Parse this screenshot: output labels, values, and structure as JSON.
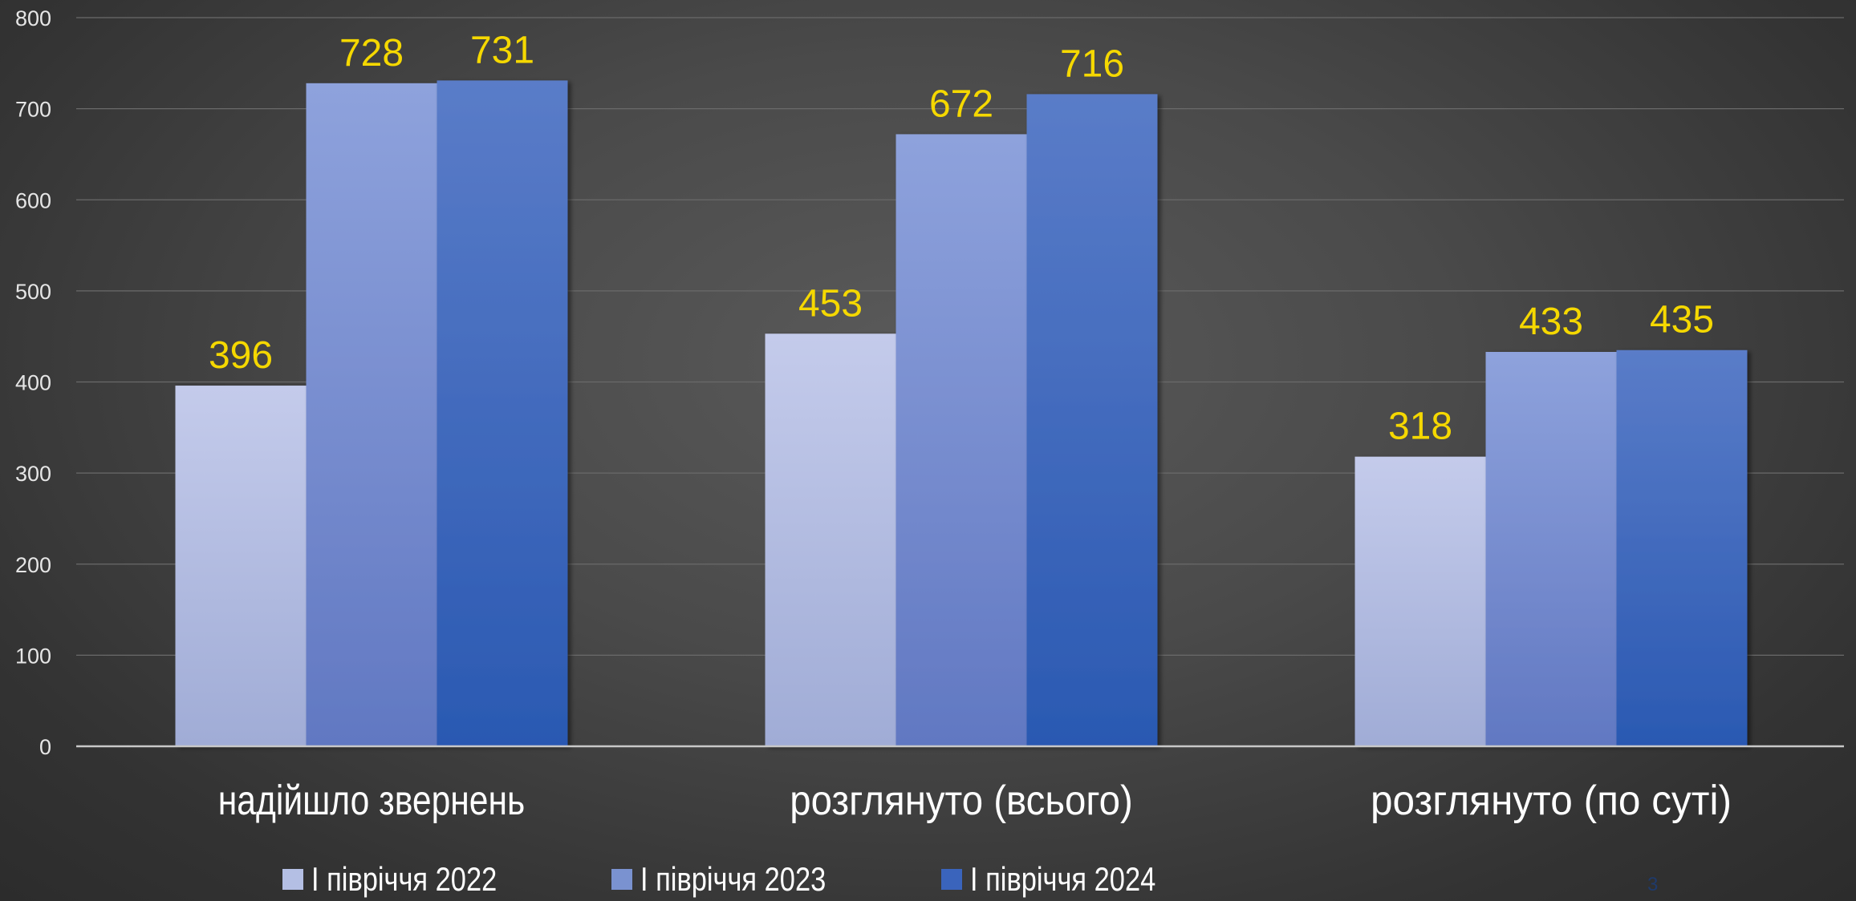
{
  "chart_data": {
    "type": "bar",
    "title": "",
    "xlabel": "",
    "ylabel": "",
    "ylim": [
      0,
      800
    ],
    "yticks": [
      "0",
      "100",
      "200",
      "300",
      "400",
      "500",
      "600",
      "700",
      "800"
    ],
    "grid": true,
    "legend_position": "bottom",
    "categories": [
      "надійшло звернень",
      "розглянуто (всього)",
      "розглянуто (по суті)"
    ],
    "series": [
      {
        "name": "І півріччя 2022",
        "values": [
          396,
          453,
          318
        ],
        "color": "#b4bfe4"
      },
      {
        "name": "І півріччя 2023",
        "values": [
          728,
          672,
          433
        ],
        "color": "#7a92d0"
      },
      {
        "name": "І півріччя 2024",
        "values": [
          731,
          716,
          435
        ],
        "color": "#3a64bc"
      }
    ],
    "data_label_color": "#f5d800"
  },
  "page_number": "3"
}
